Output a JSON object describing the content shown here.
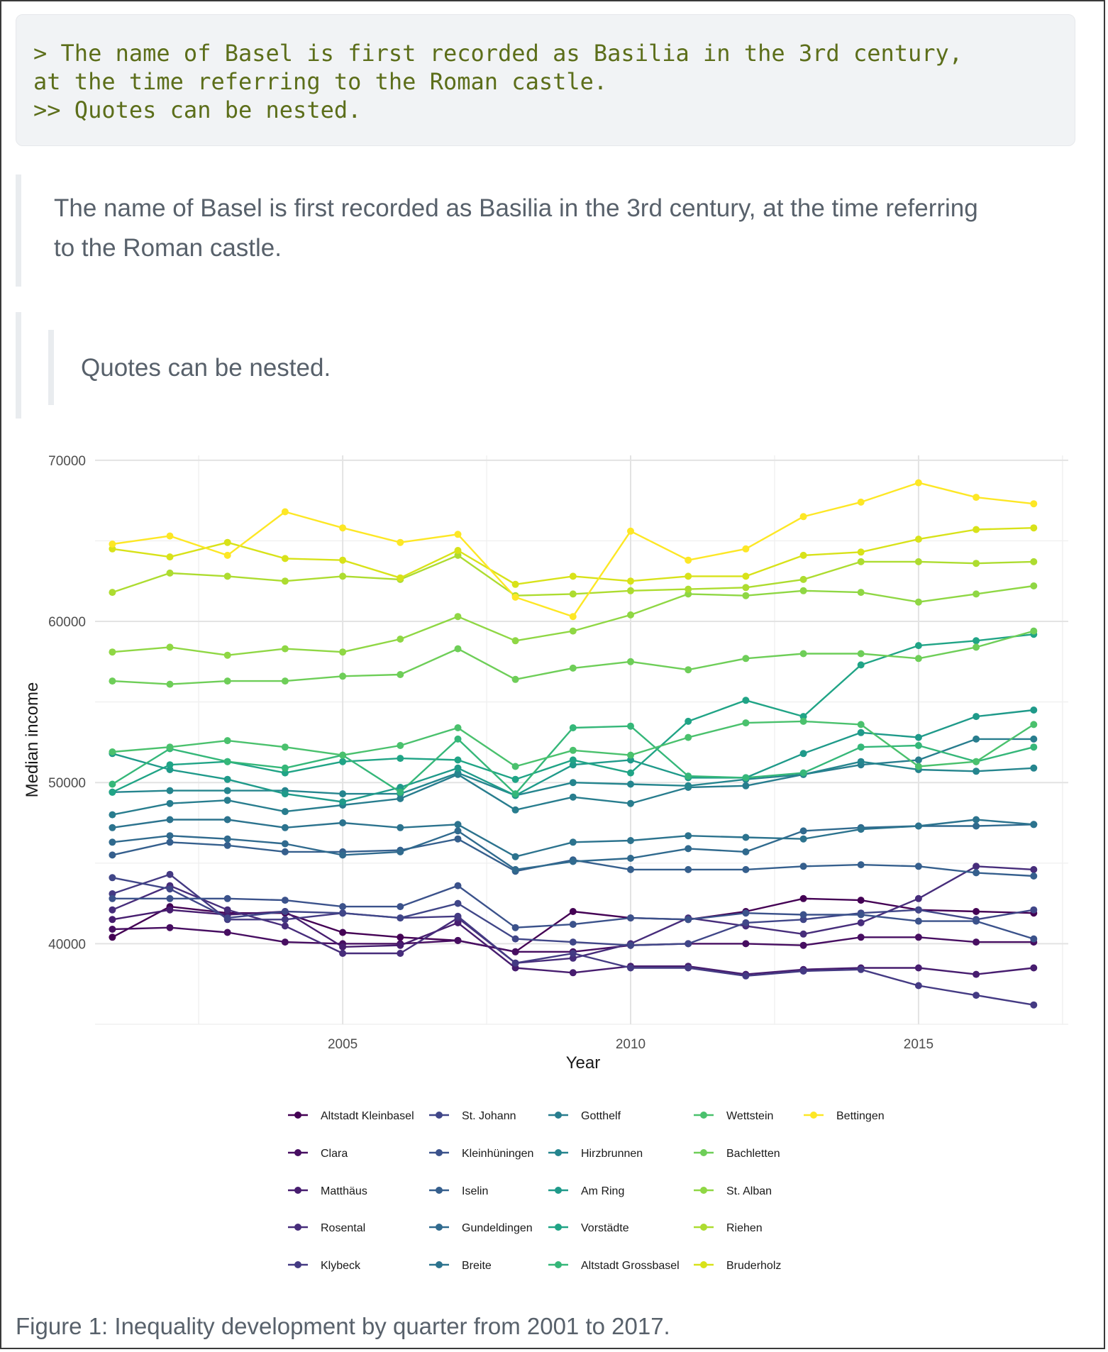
{
  "code_block": {
    "lines": [
      "> The name of Basel is first recorded as Basilia in the 3rd century,",
      "at the time referring to the Roman castle.",
      ">> Quotes can be nested."
    ]
  },
  "blockquote": {
    "text": "The name of Basel is first recorded as Basilia in the 3rd century, at the time referring to the Roman castle.",
    "nested_text": "Quotes can be nested."
  },
  "caption": "Figure 1: Inequality development by quarter from 2001 to 2017.",
  "chart_data": {
    "type": "line",
    "title": "",
    "xlabel": "Year",
    "ylabel": "Median income",
    "xlim": [
      2000.7,
      2017.6
    ],
    "ylim": [
      35000,
      70300
    ],
    "x_ticks": [
      2005,
      2010,
      2015
    ],
    "y_ticks": [
      40000,
      50000,
      60000,
      70000
    ],
    "grid": true,
    "legend_position": "bottom",
    "x": [
      2001,
      2002,
      2003,
      2004,
      2005,
      2006,
      2007,
      2008,
      2009,
      2010,
      2011,
      2012,
      2013,
      2014,
      2015,
      2016,
      2017
    ],
    "series": [
      {
        "name": "Altstadt Kleinbasel",
        "color": "#440154",
        "values": [
          40400,
          42300,
          41900,
          41900,
          40700,
          40400,
          40200,
          39500,
          42000,
          41600,
          41500,
          42000,
          42800,
          42700,
          42100,
          42000,
          41900
        ]
      },
      {
        "name": "Clara",
        "color": "#470e61",
        "values": [
          40900,
          41000,
          40700,
          40100,
          40000,
          40000,
          40200,
          39500,
          39500,
          39900,
          40000,
          40000,
          39900,
          40400,
          40400,
          40100,
          40100
        ]
      },
      {
        "name": "Matthäus",
        "color": "#471d6f",
        "values": [
          41500,
          42100,
          41800,
          42000,
          39800,
          39900,
          41300,
          38500,
          38200,
          38600,
          38600,
          38100,
          38400,
          38500,
          38500,
          38100,
          38500
        ]
      },
      {
        "name": "Rosental",
        "color": "#472d7b",
        "values": [
          42100,
          43600,
          42100,
          41100,
          39400,
          39400,
          41600,
          38800,
          39100,
          40000,
          41600,
          41100,
          40600,
          41300,
          42800,
          44800,
          44600
        ]
      },
      {
        "name": "Klybeck",
        "color": "#443a83",
        "values": [
          43100,
          44300,
          41500,
          41500,
          41900,
          41600,
          41700,
          38800,
          39400,
          38500,
          38500,
          38000,
          38300,
          38400,
          37400,
          36800,
          36200
        ]
      },
      {
        "name": "St. Johann",
        "color": "#404688",
        "values": [
          44100,
          43400,
          41600,
          42000,
          41900,
          41600,
          42500,
          40300,
          40100,
          39900,
          40000,
          41300,
          41500,
          41900,
          42100,
          41500,
          42100
        ]
      },
      {
        "name": "Kleinhüningen",
        "color": "#3b528b",
        "values": [
          42800,
          42800,
          42800,
          42700,
          42300,
          42300,
          43600,
          41000,
          41200,
          41600,
          41500,
          41900,
          41800,
          41800,
          41400,
          41400,
          40300
        ]
      },
      {
        "name": "Iselin",
        "color": "#355f8d",
        "values": [
          45500,
          46300,
          46100,
          45700,
          45700,
          45800,
          46500,
          44500,
          45200,
          44600,
          44600,
          44600,
          44800,
          44900,
          44800,
          44400,
          44200
        ]
      },
      {
        "name": "Gundeldingen",
        "color": "#306a8e",
        "values": [
          46300,
          46700,
          46500,
          46200,
          45500,
          45700,
          47000,
          44600,
          45100,
          45300,
          45900,
          45700,
          47000,
          47200,
          47300,
          47300,
          47400
        ]
      },
      {
        "name": "Breite",
        "color": "#2c738e",
        "values": [
          47200,
          47700,
          47700,
          47200,
          47500,
          47200,
          47400,
          45400,
          46300,
          46400,
          46700,
          46600,
          46500,
          47100,
          47300,
          47700,
          47400
        ]
      },
      {
        "name": "Gotthelf",
        "color": "#287d8e",
        "values": [
          48000,
          48700,
          48900,
          48200,
          48600,
          49000,
          50500,
          48300,
          49100,
          48700,
          49700,
          49800,
          50500,
          51100,
          51400,
          52700,
          52700
        ]
      },
      {
        "name": "Hirzbrunnen",
        "color": "#25858e",
        "values": [
          49400,
          49500,
          49500,
          49500,
          49300,
          49300,
          50600,
          49200,
          50000,
          49900,
          49800,
          50200,
          50500,
          51300,
          50800,
          50700,
          50900
        ]
      },
      {
        "name": "Am Ring",
        "color": "#1f9a8a",
        "values": [
          51800,
          50800,
          50200,
          49300,
          48800,
          49700,
          50900,
          49200,
          51100,
          51400,
          50300,
          50300,
          51800,
          53100,
          52800,
          54100,
          54500
        ]
      },
      {
        "name": "Vorstädte",
        "color": "#20a486",
        "values": [
          49400,
          51100,
          51300,
          50600,
          51300,
          51500,
          51400,
          50200,
          51400,
          50600,
          53800,
          55100,
          54100,
          57300,
          58500,
          58800,
          59200
        ]
      },
      {
        "name": "Altstadt Grossbasel",
        "color": "#35b779",
        "values": [
          49900,
          52100,
          51300,
          50900,
          51700,
          49400,
          52700,
          49300,
          53400,
          53500,
          50400,
          50300,
          50600,
          52200,
          52300,
          51300,
          52200
        ]
      },
      {
        "name": "Wettstein",
        "color": "#4ac16d",
        "values": [
          51900,
          52200,
          52600,
          52200,
          51700,
          52300,
          53400,
          51000,
          52000,
          51700,
          52800,
          53700,
          53800,
          53600,
          51000,
          51300,
          53600
        ]
      },
      {
        "name": "Bachletten",
        "color": "#6ece58",
        "values": [
          56300,
          56100,
          56300,
          56300,
          56600,
          56700,
          58300,
          56400,
          57100,
          57500,
          57000,
          57700,
          58000,
          58000,
          57700,
          58400,
          59400
        ]
      },
      {
        "name": "St. Alban",
        "color": "#8fd744",
        "values": [
          58100,
          58400,
          57900,
          58300,
          58100,
          58900,
          60300,
          58800,
          59400,
          60400,
          61700,
          61600,
          61900,
          61800,
          61200,
          61700,
          62200
        ]
      },
      {
        "name": "Riehen",
        "color": "#addc30",
        "values": [
          61800,
          63000,
          62800,
          62500,
          62800,
          62600,
          64100,
          61600,
          61700,
          61900,
          62000,
          62100,
          62600,
          63700,
          63700,
          63600,
          63700
        ]
      },
      {
        "name": "Bruderholz",
        "color": "#d8e219",
        "values": [
          64500,
          64000,
          64900,
          63900,
          63800,
          62700,
          64400,
          62300,
          62800,
          62500,
          62800,
          62800,
          64100,
          64300,
          65100,
          65700,
          65800
        ]
      },
      {
        "name": "Bettingen",
        "color": "#fde725",
        "values": [
          64800,
          65300,
          64100,
          66800,
          65800,
          64900,
          65400,
          61500,
          60300,
          65600,
          63800,
          64500,
          66500,
          67400,
          68600,
          67700,
          67300
        ]
      }
    ]
  }
}
